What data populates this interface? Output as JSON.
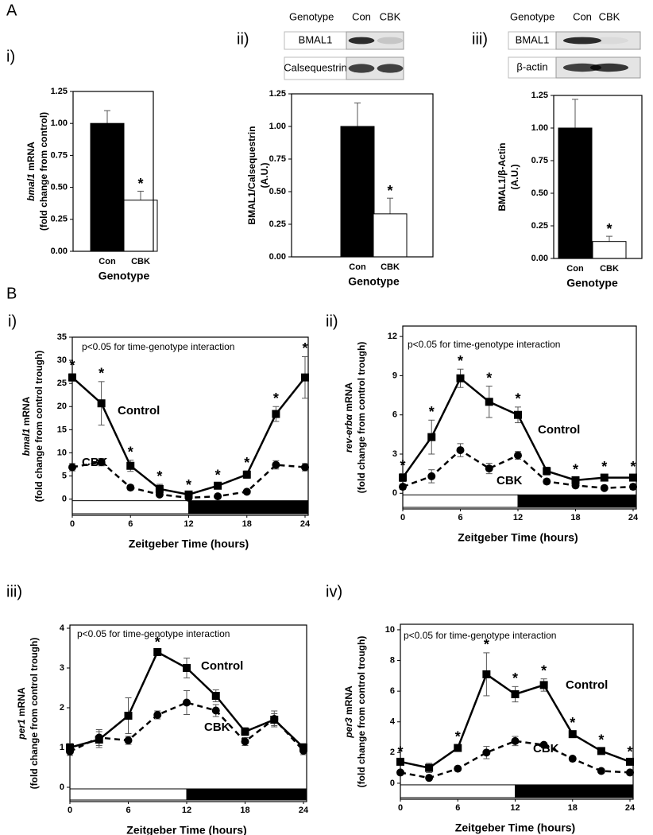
{
  "sections": [
    "A",
    "B"
  ],
  "chart_data": [
    {
      "type": "bar",
      "panel": "i)",
      "categories": [
        "Con",
        "CBK"
      ],
      "values": [
        1.0,
        0.4
      ],
      "errors": [
        0.1,
        0.07
      ],
      "colors": [
        "#000000",
        "#ffffff"
      ],
      "significant": [
        false,
        true
      ],
      "significance_label": "*",
      "ylim": [
        0,
        1.25
      ],
      "yticks": [
        {
          "value": 0,
          "label": "0.00"
        },
        {
          "value": 0.25,
          "label": "0.25"
        },
        {
          "value": 0.5,
          "label": "0.50"
        },
        {
          "value": 0.75,
          "label": "0.75"
        },
        {
          "value": 1,
          "label": "1.00"
        },
        {
          "value": 1.25,
          "label": "1.25"
        }
      ],
      "ylabel_italic": "bmal1",
      "ylabel": " mRNA",
      "ylabel_line2": "(fold change from control)",
      "xlabel": "Genotype"
    },
    {
      "type": "bar",
      "panel": "ii)",
      "blot": {
        "header": "Genotype",
        "lanes": [
          "Con",
          "CBK"
        ],
        "rows": [
          "BMAL1",
          "Calsequestrin"
        ]
      },
      "categories": [
        "Con",
        "CBK"
      ],
      "values": [
        1.0,
        0.33
      ],
      "errors": [
        0.18,
        0.12
      ],
      "colors": [
        "#000000",
        "#ffffff"
      ],
      "significant": [
        false,
        true
      ],
      "significance_label": "*",
      "ylim": [
        0,
        1.25
      ],
      "yticks": [
        {
          "value": 0,
          "label": "0.00"
        },
        {
          "value": 0.25,
          "label": "0.25"
        },
        {
          "value": 0.5,
          "label": "0.50"
        },
        {
          "value": 0.75,
          "label": "0.75"
        },
        {
          "value": 1,
          "label": "1.00"
        },
        {
          "value": 1.25,
          "label": "1.25"
        }
      ],
      "ylabel": "BMAL1/Calsequestrin",
      "ylabel_line2": "(A.U.)",
      "xlabel": "Genotype"
    },
    {
      "type": "bar",
      "panel": "iii)",
      "blot": {
        "header": "Genotype",
        "lanes": [
          "Con",
          "CBK"
        ],
        "rows": [
          "BMAL1",
          "β-actin"
        ]
      },
      "categories": [
        "Con",
        "CBK"
      ],
      "values": [
        1.0,
        0.13
      ],
      "errors": [
        0.22,
        0.04
      ],
      "colors": [
        "#000000",
        "#ffffff"
      ],
      "significant": [
        false,
        true
      ],
      "significance_label": "*",
      "ylim": [
        0,
        1.25
      ],
      "yticks": [
        {
          "value": 0,
          "label": "0.00"
        },
        {
          "value": 0.25,
          "label": "0.25"
        },
        {
          "value": 0.5,
          "label": "0.50"
        },
        {
          "value": 0.75,
          "label": "0.75"
        },
        {
          "value": 1,
          "label": "1.00"
        },
        {
          "value": 1.25,
          "label": "1.25"
        }
      ],
      "ylabel": "BMAL1/β-Actin",
      "ylabel_line2": "(A.U.)",
      "xlabel": "Genotype"
    },
    {
      "type": "line",
      "panel": "i)",
      "annotation": "p<0.05 for time-genotype interaction",
      "x": [
        0,
        3,
        6,
        9,
        12,
        15,
        18,
        21,
        24
      ],
      "xlim": [
        0,
        24
      ],
      "xticks": [
        0,
        6,
        12,
        18,
        24
      ],
      "ylim": [
        -3.5,
        35
      ],
      "yticks": [
        0,
        5,
        10,
        15,
        20,
        25,
        30,
        35
      ],
      "light_dark": {
        "light": [
          0,
          12
        ],
        "dark": [
          12,
          24
        ]
      },
      "significant": [
        true,
        true,
        true,
        true,
        true,
        true,
        true,
        true,
        true
      ],
      "significance_label": "*",
      "ylabel_italic": "bmal1",
      "ylabel": " mRNA",
      "ylabel_line2": "(fold change from control trough)",
      "xlabel": "Zeitgeber Time (hours)",
      "series": [
        {
          "name": "Control",
          "color": "#000000",
          "marker": "square",
          "dashed": false,
          "values": [
            26.3,
            20.7,
            7.2,
            2.2,
            1.0,
            2.9,
            5.3,
            18.4,
            26.3
          ],
          "errors": [
            0.8,
            4.7,
            1.2,
            1.0,
            0.3,
            0.5,
            0.8,
            1.6,
            4.5
          ]
        },
        {
          "name": "CBK",
          "color": "#000000",
          "marker": "circle",
          "dashed": true,
          "values": [
            6.9,
            8.0,
            2.5,
            1.0,
            0.3,
            0.6,
            1.6,
            7.4,
            6.9
          ],
          "errors": [
            0.8,
            0.8,
            0.5,
            0.3,
            0.2,
            0.2,
            0.3,
            0.9,
            0.8
          ]
        }
      ]
    },
    {
      "type": "line",
      "panel": "ii)",
      "annotation": "p<0.05 for time-genotype interaction",
      "x": [
        0,
        3,
        6,
        9,
        12,
        15,
        18,
        21,
        24
      ],
      "xlim": [
        0,
        24
      ],
      "xticks": [
        0,
        6,
        12,
        18,
        24
      ],
      "ylim": [
        -1.2,
        12.8
      ],
      "yticks": [
        0,
        3,
        6,
        9,
        12
      ],
      "light_dark": {
        "light": [
          0,
          12
        ],
        "dark": [
          12,
          24
        ]
      },
      "significant": [
        true,
        true,
        true,
        true,
        true,
        false,
        true,
        true,
        true
      ],
      "significance_label": "*",
      "ylabel_italic": "rev-erbα",
      "ylabel": "  mRNA",
      "ylabel_line2": "(fold change from control trough)",
      "xlabel": "Zeitgeber Time (hours)",
      "series": [
        {
          "name": "Control",
          "color": "#000000",
          "marker": "square",
          "dashed": false,
          "values": [
            1.2,
            4.3,
            8.8,
            7.0,
            6.0,
            1.7,
            1.0,
            1.2,
            1.2
          ],
          "errors": [
            0.3,
            1.3,
            0.7,
            1.2,
            0.6,
            0.3,
            0.2,
            0.2,
            0.2
          ]
        },
        {
          "name": "CBK",
          "color": "#000000",
          "marker": "circle",
          "dashed": true,
          "values": [
            0.5,
            1.3,
            3.3,
            1.9,
            2.9,
            0.9,
            0.6,
            0.4,
            0.5
          ],
          "errors": [
            0.2,
            0.5,
            0.5,
            0.4,
            0.3,
            0.2,
            0.1,
            0.1,
            0.2
          ]
        }
      ]
    },
    {
      "type": "line",
      "panel": "iii)",
      "annotation": "p<0.05 for time-genotype interaction",
      "x": [
        0,
        3,
        6,
        9,
        12,
        15,
        18,
        21,
        24
      ],
      "xlim": [
        0,
        24
      ],
      "xticks": [
        0,
        6,
        12,
        18,
        24
      ],
      "ylim": [
        -0.36,
        4.08
      ],
      "yticks": [
        0,
        1,
        2,
        3,
        4
      ],
      "light_dark": {
        "light": [
          0,
          12
        ],
        "dark": [
          12,
          24
        ]
      },
      "significant": [
        false,
        false,
        false,
        true,
        false,
        false,
        false,
        false,
        false
      ],
      "significance_label": "*",
      "ylabel_italic": "per1",
      "ylabel": " mRNA",
      "ylabel_line2": "(fold change from control trough)",
      "xlabel": "Zeitgeber Time (hours)",
      "series": [
        {
          "name": "Control",
          "color": "#000000",
          "marker": "square",
          "dashed": false,
          "values": [
            1.0,
            1.2,
            1.8,
            3.4,
            3.0,
            2.3,
            1.4,
            1.7,
            1.0
          ],
          "errors": [
            0.1,
            0.2,
            0.45,
            0.05,
            0.25,
            0.15,
            0.1,
            0.15,
            0.1
          ]
        },
        {
          "name": "CBK",
          "color": "#000000",
          "marker": "circle",
          "dashed": true,
          "values": [
            0.9,
            1.25,
            1.18,
            1.82,
            2.13,
            1.93,
            1.15,
            1.72,
            0.92
          ],
          "errors": [
            0.1,
            0.2,
            0.1,
            0.1,
            0.3,
            0.15,
            0.1,
            0.2,
            0.1
          ]
        }
      ]
    },
    {
      "type": "line",
      "panel": "iv)",
      "annotation": "p<0.05 for time-genotype interaction",
      "x": [
        0,
        3,
        6,
        9,
        12,
        15,
        18,
        21,
        24
      ],
      "xlim": [
        0,
        24
      ],
      "xticks": [
        0,
        6,
        12,
        18,
        24
      ],
      "ylim": [
        -1.04,
        10.36
      ],
      "yticks": [
        0,
        2,
        4,
        6,
        8,
        10
      ],
      "light_dark": {
        "light": [
          0,
          12
        ],
        "dark": [
          12,
          24
        ]
      },
      "significant": [
        true,
        false,
        true,
        true,
        true,
        true,
        true,
        true,
        true
      ],
      "significance_label": "*",
      "ylabel_italic": "per3",
      "ylabel": " mRNA",
      "ylabel_line2": "(fold change from control trough)",
      "xlabel": "Zeitgeber Time (hours)",
      "series": [
        {
          "name": "Control",
          "color": "#000000",
          "marker": "square",
          "dashed": false,
          "values": [
            1.4,
            1.0,
            2.3,
            7.1,
            5.8,
            6.4,
            3.2,
            2.1,
            1.4
          ],
          "errors": [
            0.1,
            0.3,
            0.2,
            1.4,
            0.5,
            0.4,
            0.2,
            0.2,
            0.1
          ]
        },
        {
          "name": "CBK",
          "color": "#000000",
          "marker": "circle",
          "dashed": true,
          "values": [
            0.7,
            0.35,
            0.95,
            2.0,
            2.75,
            2.5,
            1.6,
            0.8,
            0.7
          ],
          "errors": [
            0.1,
            0.1,
            0.1,
            0.4,
            0.3,
            0.1,
            0.1,
            0.1,
            0.1
          ]
        }
      ]
    }
  ]
}
